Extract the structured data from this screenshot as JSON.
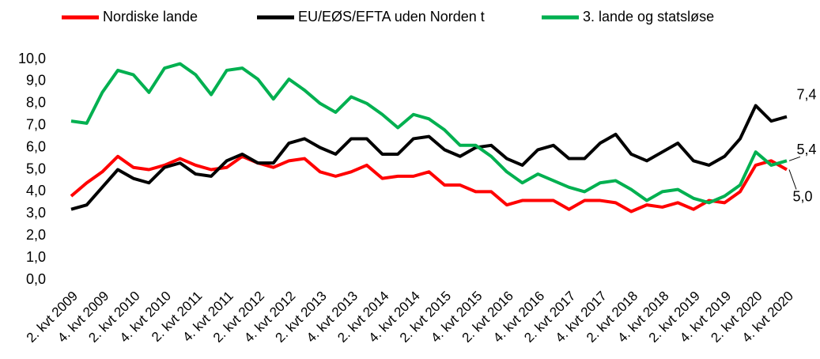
{
  "chart_data": {
    "type": "line",
    "categories": [
      "2. kvt 2009",
      null,
      "4. kvt 2009",
      null,
      "2. kvt 2010",
      null,
      "4. kvt 2010",
      null,
      "2. kvt 2011",
      null,
      "4. kvt 2011",
      null,
      "2. kvt 2012",
      null,
      "4. kvt 2012",
      null,
      "2. kvt 2013",
      null,
      "4. kvt 2013",
      null,
      "2. kvt 2014",
      null,
      "4. kvt 2014",
      null,
      "2. kvt 2015",
      null,
      "4. kvt 2015",
      null,
      "2. kvt 2016",
      null,
      "4. kvt 2016",
      null,
      "2. kvt 2017",
      null,
      "4. kvt 2017",
      null,
      "2. kvt 2018",
      null,
      "4. kvt 2018",
      null,
      "2. kvt 2019",
      null,
      "4. kvt 2019",
      null,
      "2. kvt 2020",
      null,
      "4. kvt 2020"
    ],
    "series": [
      {
        "name": "Nordiske lande",
        "color": "#ff0000",
        "values": [
          3.8,
          4.4,
          4.9,
          5.6,
          5.1,
          5.0,
          5.2,
          5.5,
          5.2,
          5.0,
          5.1,
          5.6,
          5.3,
          5.1,
          5.4,
          5.5,
          4.9,
          4.7,
          4.9,
          5.2,
          4.6,
          4.7,
          4.7,
          4.9,
          4.3,
          4.3,
          4.0,
          4.0,
          3.4,
          3.6,
          3.6,
          3.6,
          3.2,
          3.6,
          3.6,
          3.5,
          3.1,
          3.4,
          3.3,
          3.5,
          3.2,
          3.6,
          3.5,
          4.0,
          5.2,
          5.4,
          5.0
        ],
        "value_labels": [
          null,
          null,
          null,
          null,
          null,
          null,
          null,
          null,
          null,
          null,
          null,
          null,
          null,
          null,
          null,
          null,
          null,
          null,
          null,
          null,
          null,
          null,
          null,
          null,
          null,
          null,
          null,
          null,
          null,
          null,
          null,
          null,
          null,
          null,
          null,
          null,
          null,
          null,
          null,
          null,
          null,
          null,
          null,
          null,
          null,
          null,
          "5,0"
        ]
      },
      {
        "name": "EU/EØS/EFTA uden Norden t",
        "color": "#000000",
        "values": [
          3.2,
          3.4,
          4.2,
          5.0,
          4.6,
          4.4,
          5.1,
          5.3,
          4.8,
          4.7,
          5.4,
          5.7,
          5.3,
          5.3,
          6.2,
          6.4,
          6.0,
          5.7,
          6.4,
          6.4,
          5.7,
          5.7,
          6.4,
          6.5,
          5.9,
          5.6,
          6.0,
          6.1,
          5.5,
          5.2,
          5.9,
          6.1,
          5.5,
          5.5,
          6.2,
          6.6,
          5.7,
          5.4,
          5.8,
          6.2,
          5.4,
          5.2,
          5.6,
          6.4,
          7.9,
          7.2,
          7.4
        ],
        "value_labels": [
          null,
          null,
          null,
          null,
          null,
          null,
          null,
          null,
          null,
          null,
          null,
          null,
          null,
          null,
          null,
          null,
          null,
          null,
          null,
          null,
          null,
          null,
          null,
          null,
          null,
          null,
          null,
          null,
          null,
          null,
          null,
          null,
          null,
          null,
          null,
          null,
          null,
          null,
          null,
          null,
          null,
          null,
          null,
          null,
          null,
          null,
          "7,4"
        ]
      },
      {
        "name": "3. lande og statsløse",
        "color": "#00b050",
        "values": [
          7.2,
          7.1,
          8.5,
          9.5,
          9.3,
          8.5,
          9.6,
          9.8,
          9.3,
          8.4,
          9.5,
          9.6,
          9.1,
          8.2,
          9.1,
          8.6,
          8.0,
          7.6,
          8.3,
          8.0,
          7.5,
          6.9,
          7.5,
          7.3,
          6.8,
          6.1,
          6.1,
          5.6,
          4.9,
          4.4,
          4.8,
          4.5,
          4.2,
          4.0,
          4.4,
          4.5,
          4.1,
          3.6,
          4.0,
          4.1,
          3.7,
          3.5,
          3.8,
          4.3,
          5.8,
          5.2,
          5.4
        ],
        "value_labels": [
          null,
          null,
          null,
          null,
          null,
          null,
          null,
          null,
          null,
          null,
          null,
          null,
          null,
          null,
          null,
          null,
          null,
          null,
          null,
          null,
          null,
          null,
          null,
          null,
          null,
          null,
          null,
          null,
          null,
          null,
          null,
          null,
          null,
          null,
          null,
          null,
          null,
          null,
          null,
          null,
          null,
          null,
          null,
          null,
          null,
          null,
          "5,4"
        ]
      }
    ],
    "ylim": [
      0,
      10
    ],
    "yticks": [
      {
        "value": 0,
        "label": "0,0"
      },
      {
        "value": 1,
        "label": "1,0"
      },
      {
        "value": 2,
        "label": "2,0"
      },
      {
        "value": 3,
        "label": "3,0"
      },
      {
        "value": 4,
        "label": "4,0"
      },
      {
        "value": 5,
        "label": "5,0"
      },
      {
        "value": 6,
        "label": "6,0"
      },
      {
        "value": 7,
        "label": "7,0"
      },
      {
        "value": 8,
        "label": "8,0"
      },
      {
        "value": 9,
        "label": "9,0"
      },
      {
        "value": 10,
        "label": "10,0"
      }
    ],
    "grid": false,
    "legend": "top"
  }
}
